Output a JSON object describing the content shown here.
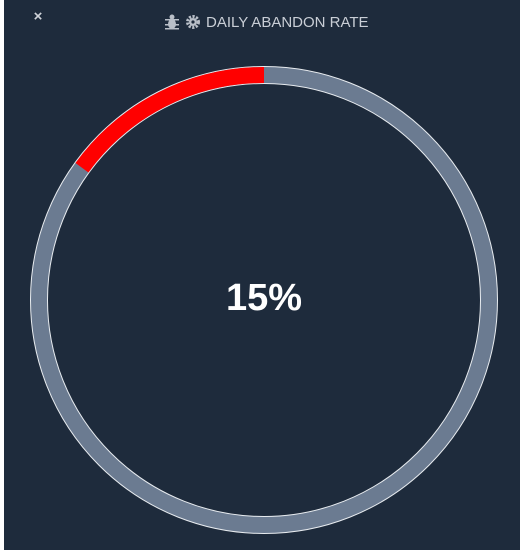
{
  "close": "×",
  "chart_data": {
    "type": "donut",
    "title": "DAILY ABANDON RATE",
    "values": [
      15
    ],
    "value_labels": [
      "15%"
    ],
    "ylim": [
      0,
      100
    ],
    "color": "#ff0000",
    "track_color": "#6b7b91"
  }
}
